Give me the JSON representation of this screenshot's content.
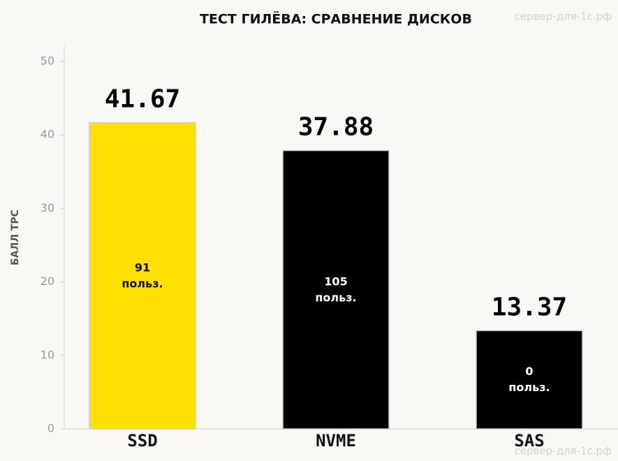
{
  "chart_data": {
    "type": "bar",
    "title": "ТЕСТ ГИЛЁВА: СРАВНЕНИЕ ДИСКОВ",
    "watermark": "сервер-для-1с.рф",
    "ylabel": "БАЛЛ TPC",
    "categories": [
      "SSD",
      "NVME",
      "SAS"
    ],
    "values": [
      41.67,
      37.88,
      13.37
    ],
    "colors": [
      "#ffe000",
      "#000000",
      "#000000"
    ],
    "bar_notes": [
      {
        "count": 91,
        "unit": "польз."
      },
      {
        "count": 105,
        "unit": "польз."
      },
      {
        "count": 0,
        "unit": "польз."
      }
    ],
    "ylim": [
      0,
      52
    ],
    "yticks": [
      0,
      10,
      20,
      30,
      40,
      50
    ],
    "grid": false
  }
}
